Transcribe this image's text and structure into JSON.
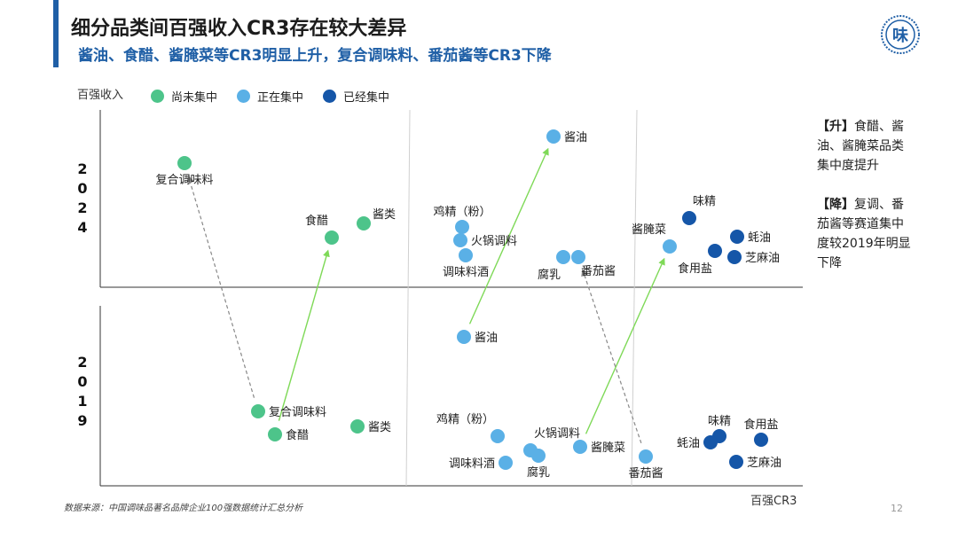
{
  "title": "细分品类间百强收入CR3存在较大差异",
  "subtitle": "酱油、食醋、酱腌菜等CR3明显上升，复合调味料、番茄酱等CR3下降",
  "logo_text": "味",
  "source": "数据来源：中国调味品著名品牌企业100强数据统计汇总分析",
  "page_number": "12",
  "notes": [
    {
      "bracket": "【升】",
      "text": "食醋、酱油、酱腌菜品类集中度提升"
    },
    {
      "bracket": "【降】",
      "text": "复调、番茄酱等赛道集中度较2019年明显下降"
    }
  ],
  "colors": {
    "accent": "#1f5fa6",
    "not_concentrated": "#4dc48a",
    "concentrating": "#5ab0e6",
    "concentrated": "#1556a8",
    "up_arrow": "#7ed957",
    "down_arrow": "#888888"
  },
  "chart_data": {
    "type": "scatter",
    "xlabel": "百强CR3",
    "ylabel": "百强收入",
    "panels": [
      {
        "year": "2024",
        "points": [
          {
            "name": "复合调味料",
            "group": "not_concentrated"
          },
          {
            "name": "食醋",
            "group": "not_concentrated"
          },
          {
            "name": "酱类",
            "group": "not_concentrated"
          },
          {
            "name": "鸡精（粉）",
            "group": "concentrating"
          },
          {
            "name": "火锅调料",
            "group": "concentrating"
          },
          {
            "name": "调味料酒",
            "group": "concentrating"
          },
          {
            "name": "腐乳",
            "group": "concentrating"
          },
          {
            "name": "番茄酱",
            "group": "concentrating"
          },
          {
            "name": "酱油",
            "group": "concentrating"
          },
          {
            "name": "酱腌菜",
            "group": "concentrating"
          },
          {
            "name": "味精",
            "group": "concentrated"
          },
          {
            "name": "食用盐",
            "group": "concentrated"
          },
          {
            "name": "蚝油",
            "group": "concentrated"
          },
          {
            "name": "芝麻油",
            "group": "concentrated"
          }
        ]
      },
      {
        "year": "2019",
        "points": [
          {
            "name": "复合调味料",
            "group": "not_concentrated"
          },
          {
            "name": "食醋",
            "group": "not_concentrated"
          },
          {
            "name": "酱类",
            "group": "not_concentrated"
          },
          {
            "name": "酱油",
            "group": "concentrating"
          },
          {
            "name": "鸡精（粉）",
            "group": "concentrating"
          },
          {
            "name": "火锅调料",
            "group": "concentrating"
          },
          {
            "name": "调味料酒",
            "group": "concentrating"
          },
          {
            "name": "腐乳",
            "group": "concentrating"
          },
          {
            "name": "酱腌菜",
            "group": "concentrating"
          },
          {
            "name": "番茄酱",
            "group": "concentrating"
          },
          {
            "name": "味精",
            "group": "concentrated"
          },
          {
            "name": "食用盐",
            "group": "concentrated"
          },
          {
            "name": "蚝油",
            "group": "concentrated"
          },
          {
            "name": "芝麻油",
            "group": "concentrated"
          }
        ]
      }
    ],
    "legend": [
      {
        "label": "尚未集中",
        "group": "not_concentrated"
      },
      {
        "label": "正在集中",
        "group": "concentrating"
      },
      {
        "label": "已经集中",
        "group": "concentrated"
      }
    ],
    "arrows": [
      {
        "category": "酱油",
        "direction": "up"
      },
      {
        "category": "食醋",
        "direction": "up"
      },
      {
        "category": "酱腌菜",
        "direction": "up"
      },
      {
        "category": "复合调味料",
        "direction": "down"
      },
      {
        "category": "番茄酱",
        "direction": "down"
      }
    ]
  }
}
